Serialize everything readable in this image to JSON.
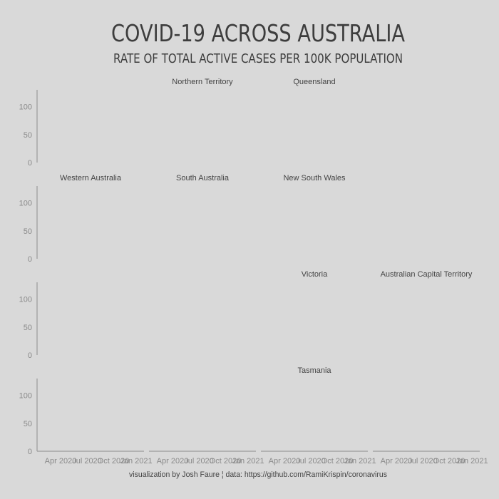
{
  "chart_data": {
    "type": "area",
    "title": "COVID-19 ACROSS AUSTRALIA",
    "subtitle": "RATE OF TOTAL ACTIVE CASES PER 100K POPULATION",
    "caption": "visualization by Josh Faure  ¦  data: https://github.com/RamiKrispin/coronavirus",
    "xlabel": "",
    "ylabel": "",
    "ylim": [
      0,
      130
    ],
    "y_ticks": [
      0,
      50,
      100
    ],
    "x_ticks": [
      "Apr 2020",
      "Jul 2020",
      "Oct 2020",
      "Jan 2021"
    ],
    "grid": false,
    "layout": "facet grid 4 rows x 4 columns (geofacet)",
    "facets": [
      {
        "name": "Northern Territory",
        "row": 1,
        "col": 2,
        "series": []
      },
      {
        "name": "Queensland",
        "row": 1,
        "col": 3,
        "series": []
      },
      {
        "name": "Western Australia",
        "row": 2,
        "col": 1,
        "series": []
      },
      {
        "name": "South Australia",
        "row": 2,
        "col": 2,
        "series": []
      },
      {
        "name": "New South Wales",
        "row": 2,
        "col": 3,
        "series": []
      },
      {
        "name": "Victoria",
        "row": 3,
        "col": 3,
        "series": []
      },
      {
        "name": "Australian Capital Territory",
        "row": 3,
        "col": 4,
        "series": []
      },
      {
        "name": "Tasmania",
        "row": 4,
        "col": 3,
        "series": []
      }
    ]
  },
  "colors": {
    "background": "#d9d9d9",
    "title": "#3d3d3d",
    "axis": "#9a9a9a",
    "tick_text": "#8a8a8a",
    "facet_text": "#444444"
  }
}
